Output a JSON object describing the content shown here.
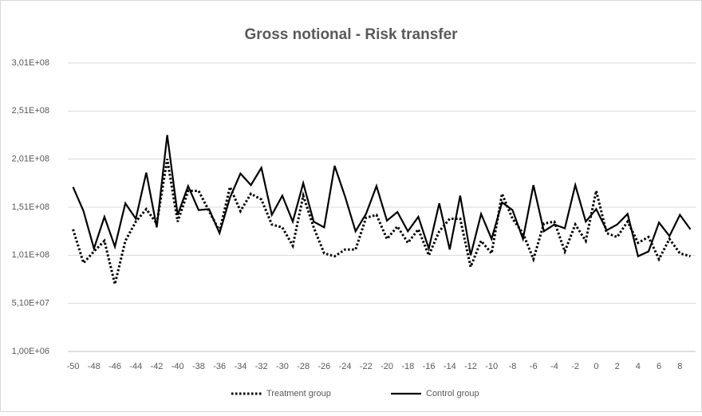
{
  "chart_data": {
    "type": "line",
    "title": "Gross notional  - Risk transfer",
    "x": [
      -50,
      -49,
      -48,
      -47,
      -46,
      -45,
      -44,
      -43,
      -42,
      -41,
      -40,
      -39,
      -38,
      -37,
      -36,
      -35,
      -34,
      -33,
      -32,
      -31,
      -30,
      -29,
      -28,
      -27,
      -26,
      -25,
      -24,
      -23,
      -22,
      -21,
      -20,
      -19,
      -18,
      -17,
      -16,
      -15,
      -14,
      -13,
      -12,
      -11,
      -10,
      -9,
      -8,
      -7,
      -6,
      -5,
      -4,
      -3,
      -2,
      -1,
      0,
      1,
      2,
      3,
      4,
      5,
      6,
      7,
      8,
      9
    ],
    "series": [
      {
        "name": "Treatment group",
        "color": "#000000",
        "style": "dotted",
        "values": [
          128000000,
          93000000,
          105000000,
          116000000,
          71000000,
          116000000,
          136000000,
          149000000,
          134000000,
          201000000,
          136000000,
          168000000,
          168000000,
          147000000,
          126000000,
          172000000,
          147000000,
          165000000,
          159000000,
          133000000,
          130000000,
          111000000,
          163000000,
          130000000,
          103000000,
          100000000,
          107000000,
          107000000,
          140000000,
          143000000,
          118000000,
          131000000,
          114000000,
          128000000,
          101000000,
          126000000,
          139000000,
          139000000,
          89000000,
          116000000,
          103000000,
          165000000,
          139000000,
          124000000,
          97000000,
          134000000,
          136000000,
          105000000,
          133000000,
          116000000,
          168000000,
          124000000,
          120000000,
          136000000,
          114000000,
          120000000,
          97000000,
          118000000,
          103000000,
          100000000
        ]
      },
      {
        "name": "Control group",
        "color": "#000000",
        "style": "solid",
        "values": [
          172000000,
          147000000,
          108000000,
          141000000,
          110000000,
          155000000,
          139000000,
          187000000,
          130000000,
          226000000,
          143000000,
          173000000,
          148000000,
          149000000,
          124000000,
          161000000,
          186000000,
          174000000,
          192000000,
          143000000,
          163000000,
          136000000,
          176000000,
          136000000,
          130000000,
          194000000,
          162000000,
          126000000,
          144000000,
          173000000,
          137000000,
          146000000,
          126000000,
          141000000,
          108000000,
          155000000,
          107000000,
          163000000,
          101000000,
          144000000,
          118000000,
          156000000,
          148000000,
          118000000,
          174000000,
          126000000,
          133000000,
          129000000,
          174000000,
          136000000,
          149000000,
          127000000,
          133000000,
          144000000,
          100000000,
          105000000,
          135000000,
          121000000,
          143000000,
          128000000
        ]
      }
    ],
    "xlim": [
      -50.5,
      9.5
    ],
    "xticks": [
      -50,
      -48,
      -46,
      -44,
      -42,
      -40,
      -38,
      -36,
      -34,
      -32,
      -30,
      -28,
      -26,
      -24,
      -22,
      -20,
      -18,
      -16,
      -14,
      -12,
      -10,
      -8,
      -6,
      -4,
      -2,
      0,
      2,
      4,
      6,
      8
    ],
    "ylim": [
      1000000,
      301000000
    ],
    "yticks": [
      {
        "value": 1000000,
        "label": "1,00E+06"
      },
      {
        "value": 51000000,
        "label": "5,10E+07"
      },
      {
        "value": 101000000,
        "label": "1,01E+08"
      },
      {
        "value": 151000000,
        "label": "1,51E+08"
      },
      {
        "value": 201000000,
        "label": "2,01E+08"
      },
      {
        "value": 251000000,
        "label": "2,51E+08"
      },
      {
        "value": 301000000,
        "label": "3,01E+08"
      }
    ],
    "grid": true,
    "legend": "bottom"
  }
}
